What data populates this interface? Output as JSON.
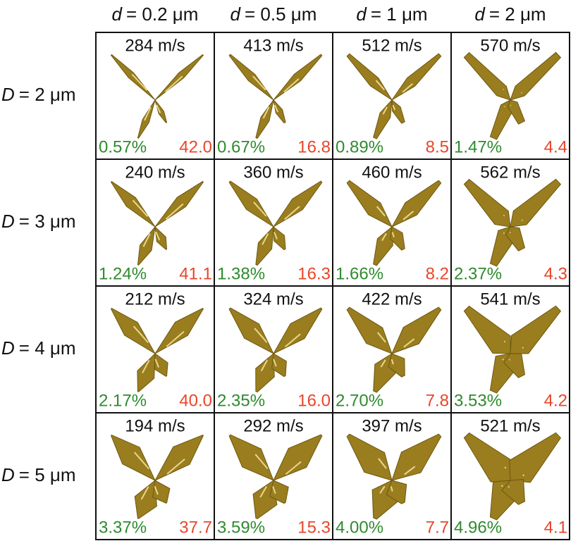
{
  "columns": [
    {
      "var": "d",
      "text": "= 0.2 μm"
    },
    {
      "var": "d",
      "text": "= 0.5 μm"
    },
    {
      "var": "d",
      "text": "= 1 μm"
    },
    {
      "var": "d",
      "text": "= 2 μm"
    }
  ],
  "rows": [
    {
      "var": "D",
      "text": "= 2 μm",
      "cells": [
        {
          "speed": "284 m/s",
          "percent": "0.57%",
          "ratio": "42.0"
        },
        {
          "speed": "413 m/s",
          "percent": "0.67%",
          "ratio": "16.8"
        },
        {
          "speed": "512 m/s",
          "percent": "0.89%",
          "ratio": "8.5"
        },
        {
          "speed": "570 m/s",
          "percent": "1.47%",
          "ratio": "4.4"
        }
      ]
    },
    {
      "var": "D",
      "text": "= 3 μm",
      "cells": [
        {
          "speed": "240 m/s",
          "percent": "1.24%",
          "ratio": "41.1"
        },
        {
          "speed": "360 m/s",
          "percent": "1.38%",
          "ratio": "16.3"
        },
        {
          "speed": "460 m/s",
          "percent": "1.66%",
          "ratio": "8.2"
        },
        {
          "speed": "562 m/s",
          "percent": "2.37%",
          "ratio": "4.3"
        }
      ]
    },
    {
      "var": "D",
      "text": "= 4 μm",
      "cells": [
        {
          "speed": "212 m/s",
          "percent": "2.17%",
          "ratio": "40.0"
        },
        {
          "speed": "324 m/s",
          "percent": "2.35%",
          "ratio": "16.0"
        },
        {
          "speed": "422 m/s",
          "percent": "2.70%",
          "ratio": "7.8"
        },
        {
          "speed": "541 m/s",
          "percent": "3.53%",
          "ratio": "4.2"
        }
      ]
    },
    {
      "var": "D",
      "text": "= 5 μm",
      "cells": [
        {
          "speed": "194 m/s",
          "percent": "3.37%",
          "ratio": "37.7"
        },
        {
          "speed": "292 m/s",
          "percent": "3.59%",
          "ratio": "15.3"
        },
        {
          "speed": "397 m/s",
          "percent": "4.00%",
          "ratio": "7.7"
        },
        {
          "speed": "521 m/s",
          "percent": "4.96%",
          "ratio": "4.1"
        }
      ]
    }
  ]
}
